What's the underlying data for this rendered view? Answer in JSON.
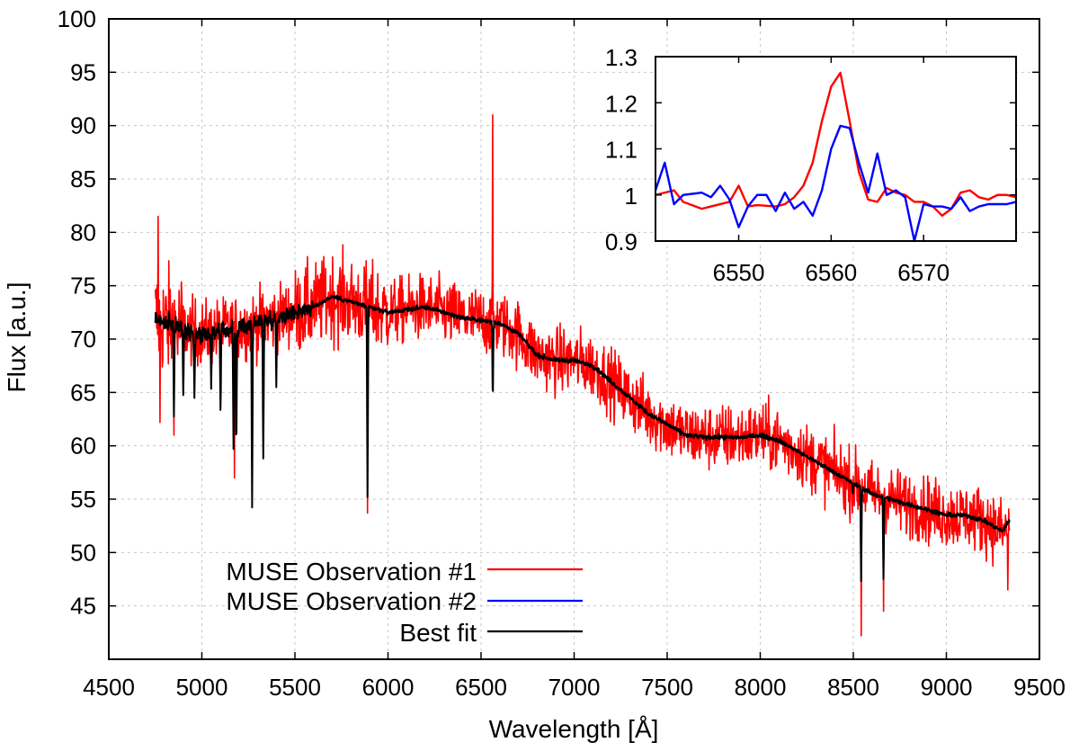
{
  "chart_data": [
    {
      "type": "line",
      "xlabel": "Wavelength [Å]",
      "ylabel": "Flux [a.u.]",
      "xlim": [
        4500,
        9500
      ],
      "ylim": [
        40,
        100
      ],
      "xticks": [
        4500,
        5000,
        5500,
        6000,
        6500,
        7000,
        7500,
        8000,
        8500,
        9000,
        9500
      ],
      "xtick_labels": [
        "4500",
        "5000",
        "5500",
        "6000",
        "6500",
        "7000",
        "7500",
        "8000",
        "8500",
        "9000",
        "9500"
      ],
      "yticks": [
        45,
        50,
        55,
        60,
        65,
        70,
        75,
        80,
        85,
        90,
        95,
        100
      ],
      "ytick_labels": [
        "45",
        "50",
        "55",
        "60",
        "65",
        "70",
        "75",
        "80",
        "85",
        "90",
        "95",
        "100"
      ],
      "grid": true,
      "legend_position": "bottom-left",
      "series": [
        {
          "name": "MUSE Observation #1",
          "color": "#ff0000",
          "noise": 2.2,
          "x": [
            4750,
            4800,
            4900,
            5000,
            5200,
            5400,
            5600,
            5700,
            5800,
            5900,
            6000,
            6200,
            6400,
            6600,
            6700,
            6800,
            6900,
            7000,
            7100,
            7200,
            7300,
            7400,
            7500,
            7600,
            7700,
            7800,
            7900,
            8000,
            8100,
            8200,
            8300,
            8400,
            8500,
            8600,
            8700,
            8800,
            8900,
            9000,
            9100,
            9200,
            9250,
            9300,
            9340
          ],
          "y": [
            72.0,
            71.5,
            71.0,
            70.5,
            71.0,
            72.0,
            73.0,
            74.0,
            73.5,
            73.0,
            72.5,
            73.0,
            72.0,
            71.5,
            70.5,
            68.5,
            68.0,
            68.0,
            67.5,
            66.0,
            64.5,
            63.0,
            62.0,
            61.0,
            60.8,
            60.8,
            60.8,
            61.0,
            60.5,
            59.5,
            58.5,
            57.5,
            56.5,
            55.5,
            55.0,
            54.5,
            54.0,
            53.5,
            53.5,
            53.0,
            52.5,
            52.0,
            52.0
          ],
          "spikes": [
            [
              4765,
              81.5
            ],
            [
              4775,
              62.2
            ],
            [
              4850,
              61.0
            ],
            [
              5175,
              57.0
            ],
            [
              5890,
              53.7
            ],
            [
              6563,
              91.0
            ],
            [
              8542,
              42.2
            ],
            [
              8662,
              44.5
            ],
            [
              9330,
              46.5
            ]
          ]
        },
        {
          "name": "MUSE Observation #2",
          "color": "#0000ff"
        },
        {
          "name": "Best fit",
          "color": "#000000",
          "x": [
            4750,
            4800,
            4900,
            5000,
            5200,
            5400,
            5600,
            5700,
            5800,
            5900,
            6000,
            6200,
            6400,
            6600,
            6700,
            6800,
            6900,
            7000,
            7100,
            7200,
            7300,
            7400,
            7500,
            7600,
            7700,
            7800,
            7900,
            8000,
            8100,
            8200,
            8300,
            8400,
            8500,
            8600,
            8700,
            8800,
            8900,
            9000,
            9100,
            9200,
            9250,
            9300,
            9340
          ],
          "y": [
            72.0,
            71.5,
            71.0,
            70.5,
            71.0,
            72.0,
            73.0,
            74.0,
            73.5,
            73.0,
            72.5,
            73.0,
            72.0,
            71.5,
            70.5,
            68.5,
            68.0,
            68.0,
            67.5,
            66.0,
            64.5,
            63.0,
            62.0,
            61.0,
            60.8,
            60.8,
            60.8,
            61.0,
            60.5,
            59.5,
            58.5,
            57.5,
            56.5,
            55.5,
            55.0,
            54.5,
            54.0,
            53.5,
            53.5,
            53.0,
            52.5,
            52.0,
            53.0
          ],
          "absorption": [
            [
              4850,
              63.5
            ],
            [
              4900,
              65.0
            ],
            [
              4960,
              64.0
            ],
            [
              5050,
              65.5
            ],
            [
              5100,
              63.0
            ],
            [
              5170,
              59.3
            ],
            [
              5185,
              59.5
            ],
            [
              5270,
              55.0
            ],
            [
              5330,
              59.3
            ],
            [
              5400,
              66.0
            ],
            [
              5890,
              55.0
            ],
            [
              6563,
              64.5
            ],
            [
              8498,
              55.5
            ],
            [
              8542,
              47.5
            ],
            [
              8662,
              47.5
            ]
          ]
        }
      ]
    },
    {
      "type": "line",
      "xlim": [
        6541,
        6580
      ],
      "ylim": [
        0.9,
        1.3
      ],
      "xticks": [
        6550,
        6560,
        6570
      ],
      "xtick_labels": [
        "6550",
        "6560",
        "6570"
      ],
      "yticks": [
        0.9,
        1.0,
        1.1,
        1.2,
        1.3
      ],
      "ytick_labels": [
        "0.9",
        "1",
        "1.1",
        "1.2",
        "1.3"
      ],
      "grid": false,
      "series": [
        {
          "name": "MUSE Observation #1",
          "color": "#ff0000",
          "x": [
            6541,
            6543,
            6544,
            6546,
            6547,
            6549,
            6550,
            6551,
            6552,
            6554,
            6555,
            6556,
            6557,
            6558,
            6559,
            6560,
            6561,
            6562,
            6563,
            6564,
            6565,
            6566,
            6567,
            6568,
            6569,
            6570,
            6571,
            6572,
            6573,
            6574,
            6575,
            6576,
            6577,
            6578,
            6579,
            6580
          ],
          "y": [
            1.0,
            1.01,
            0.985,
            0.97,
            0.975,
            0.985,
            1.02,
            0.975,
            0.978,
            0.975,
            0.98,
            0.995,
            1.02,
            1.07,
            1.16,
            1.235,
            1.265,
            1.16,
            1.05,
            0.99,
            0.985,
            1.015,
            1.005,
            1.0,
            0.985,
            0.985,
            0.975,
            0.955,
            0.97,
            1.005,
            1.01,
            0.995,
            0.99,
            1.0,
            1.0,
            0.995
          ]
        },
        {
          "name": "MUSE Observation #2",
          "color": "#0000ff",
          "x": [
            6541,
            6542,
            6543,
            6544,
            6546,
            6547,
            6548,
            6549,
            6550,
            6551,
            6552,
            6553,
            6554,
            6555,
            6556,
            6557,
            6558,
            6559,
            6560,
            6561,
            6562,
            6563,
            6564,
            6565,
            6566,
            6567,
            6568,
            6569,
            6570,
            6571,
            6572,
            6573,
            6574,
            6575,
            6576,
            6577,
            6578,
            6579,
            6580
          ],
          "y": [
            1.01,
            1.07,
            0.98,
            1.0,
            1.005,
            0.995,
            1.02,
            0.99,
            0.93,
            0.975,
            1.0,
            1.0,
            0.965,
            1.005,
            0.97,
            0.985,
            0.955,
            1.01,
            1.1,
            1.15,
            1.145,
            1.07,
            1.005,
            1.09,
            1.0,
            1.01,
            0.995,
            0.9,
            0.98,
            0.975,
            0.975,
            0.97,
            0.995,
            0.965,
            0.975,
            0.98,
            0.98,
            0.98,
            0.985
          ]
        }
      ]
    }
  ]
}
